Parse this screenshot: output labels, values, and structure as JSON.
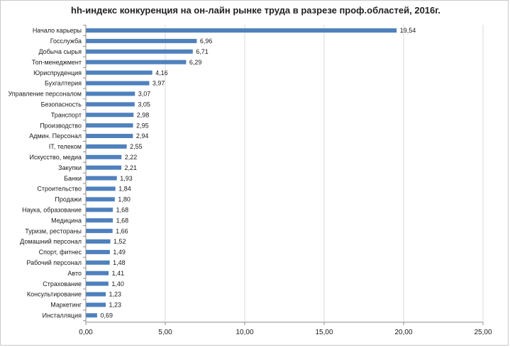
{
  "chart_data": {
    "type": "bar",
    "orientation": "horizontal",
    "title": "hh-индекс конкуренция на он-лайн рынке труда в разрезе проф.областей, 2016г.",
    "xlabel": "",
    "ylabel": "",
    "xlim": [
      0,
      25
    ],
    "x_ticks": [
      0,
      5,
      10,
      15,
      20,
      25
    ],
    "x_tick_labels": [
      "0,00",
      "5,00",
      "10,00",
      "15,00",
      "20,00",
      "25,00"
    ],
    "grid": true,
    "legend": "none",
    "bar_color": "#4f81bd",
    "categories": [
      "Начало карьеры",
      "Госслужба",
      "Добыча сырья",
      "Топ-менеджмент",
      "Юриспруденция",
      "Бухгалтерия",
      "Управление персоналом",
      "Безопасность",
      "Транспорт",
      "Производство",
      "Админ. Персонал",
      "IT, телеком",
      "Искусство, медиа",
      "Закупки",
      "Банки",
      "Строительство",
      "Продажи",
      "Наука, образование",
      "Медицина",
      "Туризм, рестораны",
      "Домашний персонал",
      "Спорт, фитнес",
      "Рабочий персонал",
      "Авто",
      "Страхование",
      "Консультирование",
      "Маркетинг",
      "Инсталляция"
    ],
    "values": [
      19.54,
      6.96,
      6.71,
      6.29,
      4.16,
      3.97,
      3.07,
      3.05,
      2.98,
      2.95,
      2.94,
      2.55,
      2.22,
      2.21,
      1.93,
      1.84,
      1.8,
      1.68,
      1.68,
      1.66,
      1.52,
      1.49,
      1.48,
      1.41,
      1.4,
      1.23,
      1.23,
      0.69
    ],
    "value_labels": [
      "19,54",
      "6,96",
      "6,71",
      "6,29",
      "4,16",
      "3,97",
      "3,07",
      "3,05",
      "2,98",
      "2,95",
      "2,94",
      "2,55",
      "2,22",
      "2,21",
      "1,93",
      "1,84",
      "1,80",
      "1,68",
      "1,68",
      "1,66",
      "1,52",
      "1,49",
      "1,48",
      "1,41",
      "1,40",
      "1,23",
      "1,23",
      "0,69"
    ]
  }
}
